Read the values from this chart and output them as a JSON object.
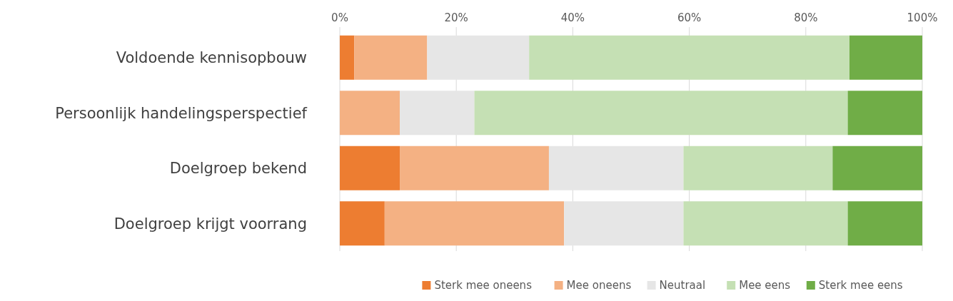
{
  "chart_data": {
    "type": "bar",
    "orientation": "horizontal",
    "stacked": true,
    "categories": [
      "Voldoende kennisopbouw",
      "Persoonlijk handelingsperspectief",
      "Doelgroep bekend",
      "Doelgroep krijgt voorrang"
    ],
    "series": [
      {
        "name": "Sterk mee oneens",
        "color": "#ed7d31",
        "values": [
          2.5,
          0,
          10.3,
          7.7
        ]
      },
      {
        "name": "Mee oneens",
        "color": "#f4b183",
        "values": [
          12.5,
          10.3,
          25.6,
          30.8
        ]
      },
      {
        "name": "Neutraal",
        "color": "#e6e6e6",
        "values": [
          17.5,
          12.8,
          23.1,
          20.5
        ]
      },
      {
        "name": "Mee eens",
        "color": "#c5e0b4",
        "values": [
          55,
          64.1,
          25.6,
          28.2
        ]
      },
      {
        "name": "Sterk mee eens",
        "color": "#70ad47",
        "values": [
          12.5,
          12.8,
          15.4,
          12.8
        ]
      }
    ],
    "xlim": [
      0,
      100
    ],
    "xticks": [
      {
        "value": 0,
        "label": "0%"
      },
      {
        "value": 20,
        "label": "20%"
      },
      {
        "value": 40,
        "label": "40%"
      },
      {
        "value": 60,
        "label": "60%"
      },
      {
        "value": 80,
        "label": "80%"
      },
      {
        "value": 100,
        "label": "100%"
      }
    ],
    "grid": "x",
    "legend": "bottom"
  }
}
